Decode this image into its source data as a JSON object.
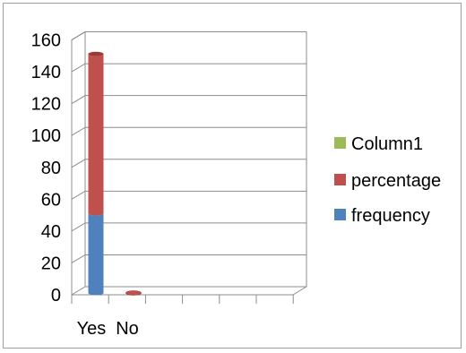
{
  "chart_data": {
    "type": "bar",
    "stacked": true,
    "style": "3d-cylinder",
    "categories": [
      "Yes",
      "No",
      "",
      "",
      "",
      "",
      ""
    ],
    "series": [
      {
        "name": "frequency",
        "color": "#4f81bd",
        "values": [
          50,
          0,
          0,
          0,
          0,
          0,
          0
        ]
      },
      {
        "name": "percentage",
        "color": "#c0504d",
        "values": [
          100,
          0,
          0,
          0,
          0,
          0,
          0
        ]
      },
      {
        "name": "Column1",
        "color": "#9bbb59",
        "values": [
          0,
          0,
          0,
          0,
          0,
          0,
          0
        ]
      }
    ],
    "y_ticks": [
      "0",
      "20",
      "40",
      "60",
      "80",
      "100",
      "120",
      "140",
      "160"
    ],
    "ylim": [
      0,
      160
    ],
    "grid": true,
    "legend_position": "right",
    "legend_order": [
      "Column1",
      "percentage",
      "frequency"
    ],
    "title": "",
    "xlabel": "",
    "ylabel": ""
  }
}
